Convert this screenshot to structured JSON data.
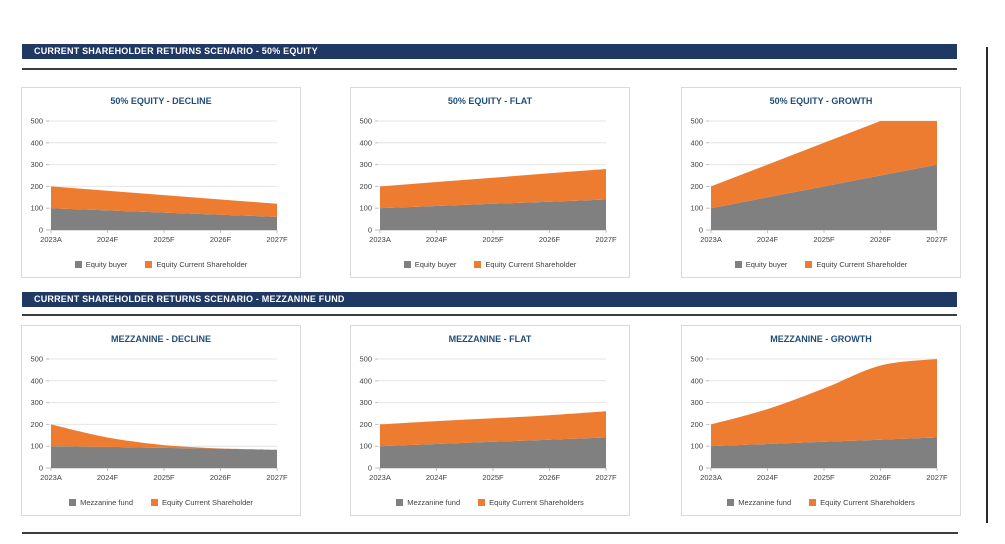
{
  "page": {
    "background": "#FFFFFF"
  },
  "colors": {
    "header_bar": "#203864",
    "chart_title": "#1F4E79",
    "orange": "#ED7C31",
    "gray": "#808080",
    "axis_text": "#404040",
    "gridline": "#E4E4E4",
    "axis_line": "#BFBFBF",
    "card_border": "#D9D9D9",
    "separator": "#3C3C3C"
  },
  "sections": [
    {
      "header": "CURRENT SHAREHOLDER RETURNS SCENARIO - 50% EQUITY"
    },
    {
      "header": "CURRENT SHAREHOLDER RETURNS SCENARIO - MEZZANINE FUND"
    }
  ],
  "chart_data": [
    {
      "type": "area",
      "stacked": true,
      "curve": "linear",
      "title": "50% EQUITY - DECLINE",
      "categories": [
        "2023A",
        "2024F",
        "2025F",
        "2026F",
        "2027F"
      ],
      "series": [
        {
          "name": "Equity buyer",
          "color": "gray",
          "values": [
            100,
            90,
            80,
            70,
            60
          ]
        },
        {
          "name": "Equity Current Shareholder",
          "color": "orange",
          "values": [
            100,
            90,
            80,
            70,
            60
          ]
        }
      ],
      "ylim": [
        0,
        500
      ],
      "ytick_step": 100,
      "grid": true,
      "legend_position": "bottom"
    },
    {
      "type": "area",
      "stacked": true,
      "curve": "linear",
      "title": "50% EQUITY - FLAT",
      "categories": [
        "2023A",
        "2024F",
        "2025F",
        "2026F",
        "2027F"
      ],
      "series": [
        {
          "name": "Equity buyer",
          "color": "gray",
          "values": [
            100,
            110,
            120,
            130,
            140
          ]
        },
        {
          "name": "Equity Current Shareholder",
          "color": "orange",
          "values": [
            100,
            110,
            120,
            130,
            140
          ]
        }
      ],
      "ylim": [
        0,
        500
      ],
      "ytick_step": 100,
      "grid": true,
      "legend_position": "bottom"
    },
    {
      "type": "area",
      "stacked": true,
      "curve": "linear",
      "title": "50% EQUITY - GROWTH",
      "categories": [
        "2023A",
        "2024F",
        "2025F",
        "2026F",
        "2027F"
      ],
      "series": [
        {
          "name": "Equity buyer",
          "color": "gray",
          "values": [
            100,
            150,
            200,
            250,
            300
          ]
        },
        {
          "name": "Equity Current Shareholder",
          "color": "orange",
          "values": [
            100,
            150,
            200,
            250,
            200
          ]
        }
      ],
      "ylim": [
        0,
        500
      ],
      "ytick_step": 100,
      "grid": true,
      "legend_position": "bottom"
    },
    {
      "type": "area",
      "stacked": true,
      "curve": "smooth",
      "title": "MEZZANINE - DECLINE",
      "categories": [
        "2023A",
        "2024F",
        "2025F",
        "2026F",
        "2027F"
      ],
      "series": [
        {
          "name": "Mezzanine fund",
          "color": "gray",
          "values": [
            100,
            97,
            92,
            88,
            83
          ]
        },
        {
          "name": "Equity Current Shareholder",
          "color": "orange",
          "values": [
            100,
            43,
            13,
            2,
            1
          ]
        }
      ],
      "ylim": [
        0,
        500
      ],
      "ytick_step": 100,
      "grid": true,
      "legend_position": "bottom"
    },
    {
      "type": "area",
      "stacked": true,
      "curve": "smooth",
      "title": "MEZZANINE - FLAT",
      "categories": [
        "2023A",
        "2024F",
        "2025F",
        "2026F",
        "2027F"
      ],
      "series": [
        {
          "name": "Mezzanine fund",
          "color": "gray",
          "values": [
            100,
            110,
            120,
            130,
            140
          ]
        },
        {
          "name": "Equity Current Shareholders",
          "color": "orange",
          "values": [
            100,
            105,
            108,
            112,
            120
          ]
        }
      ],
      "ylim": [
        0,
        500
      ],
      "ytick_step": 100,
      "grid": true,
      "legend_position": "bottom"
    },
    {
      "type": "area",
      "stacked": true,
      "curve": "smooth",
      "title": "MEZZANINE - GROWTH",
      "categories": [
        "2023A",
        "2024F",
        "2025F",
        "2026F",
        "2027F"
      ],
      "series": [
        {
          "name": "Mezzanine fund",
          "color": "gray",
          "values": [
            100,
            110,
            120,
            130,
            140
          ]
        },
        {
          "name": "Equity Current Shareholders",
          "color": "orange",
          "values": [
            100,
            160,
            245,
            340,
            360
          ]
        }
      ],
      "ylim": [
        0,
        500
      ],
      "ytick_step": 100,
      "grid": true,
      "legend_position": "bottom"
    }
  ]
}
